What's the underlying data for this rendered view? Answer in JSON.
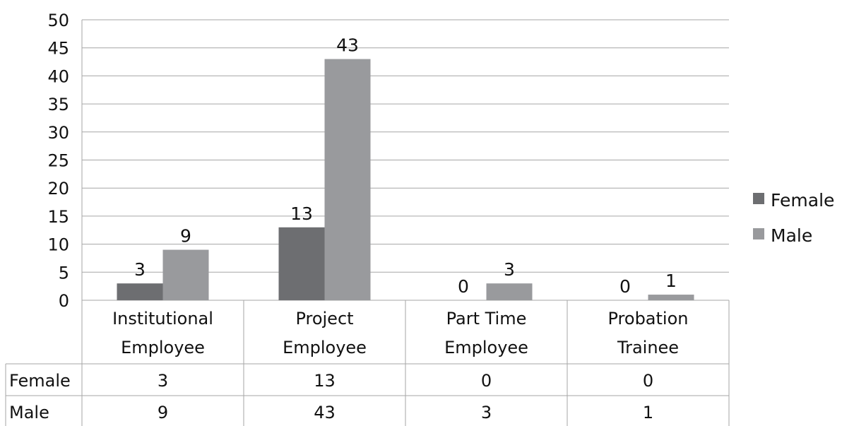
{
  "chart_data": {
    "type": "bar",
    "categories": [
      [
        "Institutional",
        "Employee"
      ],
      [
        "Project",
        "Employee"
      ],
      [
        "Part Time",
        "Employee"
      ],
      [
        "Probation",
        "Trainee"
      ]
    ],
    "series": [
      {
        "name": "Female",
        "values": [
          3,
          13,
          0,
          0
        ],
        "color": "#6d6e71"
      },
      {
        "name": "Male",
        "values": [
          9,
          43,
          3,
          1
        ],
        "color": "#999a9d"
      }
    ],
    "ylim": [
      0,
      50
    ],
    "yticks": [
      0,
      5,
      10,
      15,
      20,
      25,
      30,
      35,
      40,
      45,
      50
    ],
    "grid": true,
    "legend_position": "right",
    "data_table": true
  }
}
